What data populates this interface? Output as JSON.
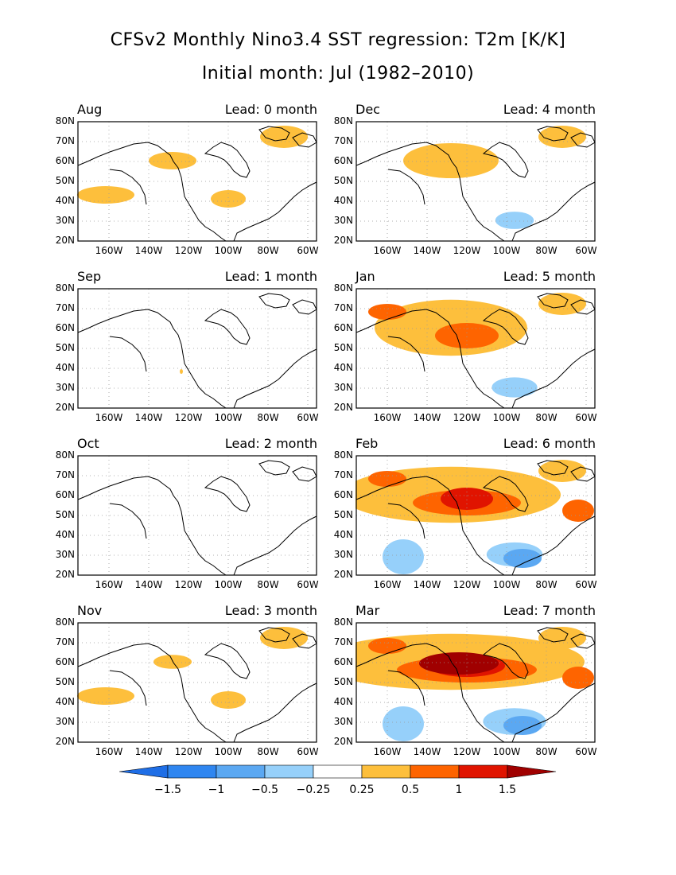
{
  "title": "CFSv2 Monthly Nino3.4 SST regression: T2m [K/K]",
  "subtitle": "Initial month: Jul (1982–2010)",
  "axes": {
    "y_ticks": [
      "80N",
      "70N",
      "60N",
      "50N",
      "40N",
      "30N",
      "20N"
    ],
    "x_ticks": [
      "160W",
      "140W",
      "120W",
      "100W",
      "80W",
      "60W"
    ]
  },
  "panels": [
    {
      "month": "Aug",
      "lead": "Lead: 0 month",
      "intensity": 0.5,
      "cold": 0.1
    },
    {
      "month": "Dec",
      "lead": "Lead: 4 month",
      "intensity": 1.0,
      "cold": 0.3
    },
    {
      "month": "Sep",
      "lead": "Lead: 1 month",
      "intensity": 0.05,
      "cold": 0.0
    },
    {
      "month": "Jan",
      "lead": "Lead: 5 month",
      "intensity": 1.6,
      "cold": 0.5
    },
    {
      "month": "Oct",
      "lead": "Lead: 2 month",
      "intensity": 0.0,
      "cold": 0.0
    },
    {
      "month": "Feb",
      "lead": "Lead: 6 month",
      "intensity": 2.3,
      "cold": 0.8
    },
    {
      "month": "Nov",
      "lead": "Lead: 3 month",
      "intensity": 0.4,
      "cold": 0.1
    },
    {
      "month": "Mar",
      "lead": "Lead: 7 month",
      "intensity": 2.8,
      "cold": 1.0
    }
  ],
  "colorbar": {
    "labels": [
      "−1.5",
      "−1",
      "−0.5",
      "−0.25",
      "0.25",
      "0.5",
      "1",
      "1.5"
    ],
    "colors": [
      "#1e6ee6",
      "#2f86f0",
      "#5ba8f2",
      "#96d0fa",
      "#ffffff",
      "#fdbf3c",
      "#fe6400",
      "#e01400",
      "#a00000"
    ]
  }
}
